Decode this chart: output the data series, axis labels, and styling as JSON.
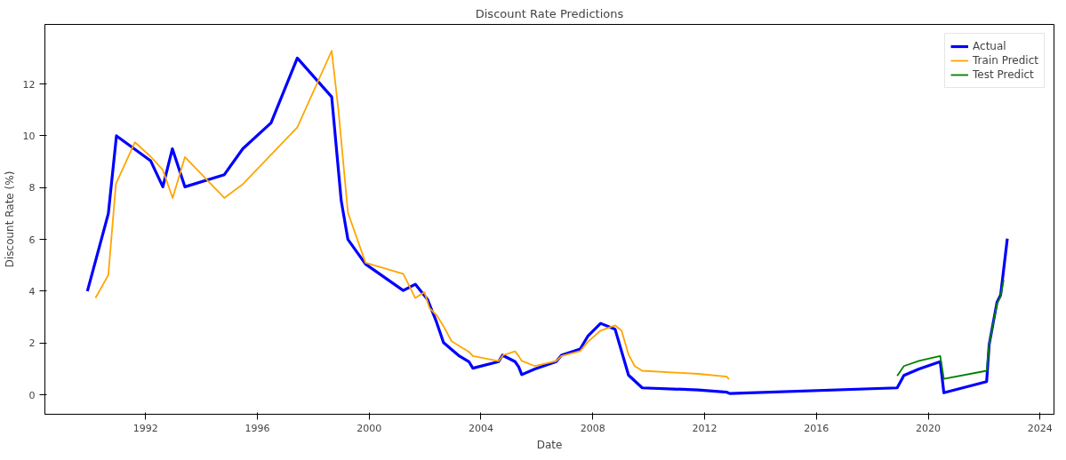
{
  "chart_data": {
    "type": "line",
    "title": "Discount Rate Predictions",
    "xlabel": "Date",
    "ylabel": "Discount Rate (%)",
    "xlim": [
      1988.4,
      2024.5
    ],
    "ylim": [
      -0.75,
      14.3
    ],
    "xticks": [
      1992,
      1996,
      2000,
      2004,
      2008,
      2012,
      2016,
      2020,
      2024
    ],
    "yticks": [
      0,
      2,
      4,
      6,
      8,
      10,
      12
    ],
    "grid": false,
    "legend": "top right",
    "marker": "none",
    "line_style": "solid",
    "series": [
      {
        "name": "Actual",
        "color": "#0000ff",
        "x": [
          1989.92,
          1990.67,
          1990.96,
          1992.18,
          1992.62,
          1992.96,
          1993.41,
          1994.82,
          1995.48,
          1996.49,
          1997.43,
          1998.66,
          1999.0,
          1999.24,
          1999.87,
          2001.22,
          2001.65,
          2002.09,
          2002.41,
          2002.66,
          2003.2,
          2003.57,
          2003.71,
          2004.63,
          2004.77,
          2005.22,
          2005.35,
          2005.46,
          2005.93,
          2006.69,
          2006.88,
          2007.55,
          2007.82,
          2008.28,
          2008.8,
          2009.28,
          2009.77,
          2011.77,
          2012.8,
          2012.9,
          2018.89,
          2019.13,
          2019.67,
          2020.43,
          2020.56,
          2022.09,
          2022.18,
          2022.46,
          2022.59,
          2022.83
        ],
        "values": [
          4.0,
          7.0,
          10.0,
          9.04,
          8.03,
          9.5,
          8.03,
          8.5,
          9.5,
          10.5,
          13.0,
          11.5,
          7.5,
          6.0,
          5.05,
          4.03,
          4.27,
          3.68,
          2.81,
          2.02,
          1.52,
          1.28,
          1.03,
          1.28,
          1.53,
          1.28,
          1.08,
          0.78,
          1.0,
          1.28,
          1.53,
          1.77,
          2.26,
          2.76,
          2.53,
          0.76,
          0.27,
          0.19,
          0.1,
          0.05,
          0.27,
          0.75,
          1.0,
          1.28,
          0.08,
          0.51,
          1.93,
          3.57,
          3.85,
          6.03
        ]
      },
      {
        "name": "Train Predict",
        "color": "#ffa500",
        "x": [
          1990.21,
          1990.67,
          1990.94,
          1991.62,
          1992.18,
          1992.62,
          1992.97,
          1993.41,
          1994.82,
          1995.48,
          1997.43,
          1998.66,
          1998.9,
          1999.24,
          1999.87,
          2001.22,
          2001.65,
          2001.98,
          2002.16,
          2002.41,
          2002.66,
          2002.95,
          2003.57,
          2003.71,
          2004.63,
          2004.79,
          2005.22,
          2005.35,
          2005.46,
          2005.93,
          2006.69,
          2006.88,
          2007.55,
          2007.82,
          2008.28,
          2008.8,
          2009.03,
          2009.28,
          2009.5,
          2009.77,
          2011.77,
          2012.8,
          2012.87
        ],
        "values": [
          3.74,
          4.63,
          8.14,
          9.75,
          9.2,
          8.68,
          7.6,
          9.18,
          7.6,
          8.13,
          10.33,
          13.28,
          11.0,
          7.04,
          5.1,
          4.67,
          3.74,
          3.96,
          3.35,
          3.08,
          2.65,
          2.07,
          1.66,
          1.5,
          1.3,
          1.53,
          1.68,
          1.5,
          1.31,
          1.11,
          1.3,
          1.5,
          1.69,
          2.04,
          2.48,
          2.68,
          2.48,
          1.55,
          1.11,
          0.93,
          0.81,
          0.7,
          0.6
        ]
      },
      {
        "name": "Test Predict",
        "color": "#008000",
        "x": [
          2018.89,
          2019.13,
          2019.67,
          2020.43,
          2020.56,
          2022.09,
          2022.18,
          2022.46,
          2022.59,
          2022.7
        ],
        "values": [
          0.73,
          1.11,
          1.31,
          1.5,
          0.62,
          0.93,
          1.93,
          3.52,
          3.8,
          4.43
        ]
      }
    ]
  }
}
